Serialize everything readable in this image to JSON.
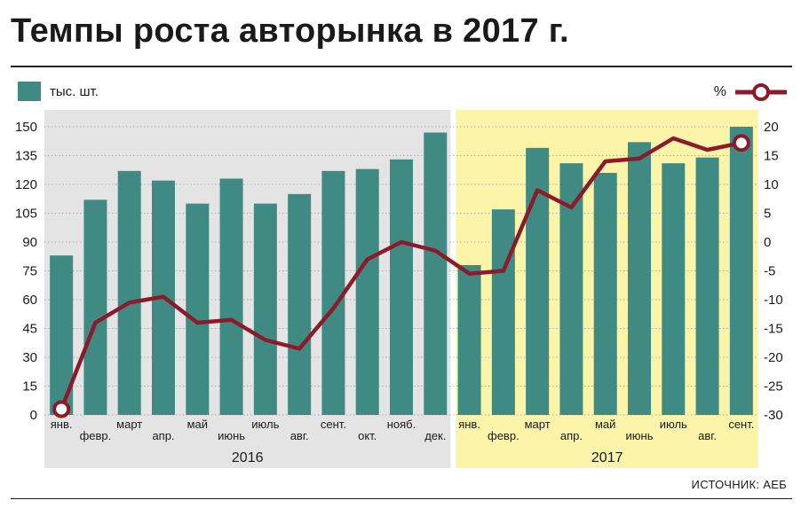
{
  "chart_data": {
    "type": "bar",
    "title": "Темпы роста авторынка в 2017 г.",
    "source": "ИСТОЧНИК: АЕБ",
    "legend": {
      "bars": "тыс. шт.",
      "line": "%"
    },
    "groups": [
      {
        "label": "2016",
        "background": "#e4e4e4",
        "categories": [
          "янв.",
          "февр.",
          "март",
          "апр.",
          "май",
          "июнь",
          "июль",
          "авг.",
          "сент.",
          "окт.",
          "нояб.",
          "дек."
        ]
      },
      {
        "label": "2017",
        "background": "#fbf4a9",
        "categories": [
          "янв.",
          "февр.",
          "март",
          "апр.",
          "май",
          "июнь",
          "июль",
          "авг.",
          "сент."
        ]
      }
    ],
    "y_left": {
      "ticks": [
        0,
        15,
        30,
        45,
        60,
        75,
        90,
        105,
        120,
        135,
        150
      ],
      "range": [
        0,
        150
      ]
    },
    "y_right": {
      "ticks": [
        -30,
        -25,
        -20,
        -15,
        -10,
        -5,
        0,
        5,
        10,
        15,
        20
      ],
      "range": [
        -30,
        20
      ]
    },
    "series": [
      {
        "name": "тыс. шт.",
        "type": "bar",
        "axis": "left",
        "color": "#3f8a82",
        "values": [
          83,
          112,
          127,
          122,
          110,
          123,
          110,
          115,
          127,
          128,
          133,
          147,
          78,
          107,
          139,
          131,
          126,
          142,
          131,
          134,
          150
        ]
      },
      {
        "name": "%",
        "type": "line",
        "axis": "right",
        "color": "#8b1a2b",
        "values": [
          -29,
          -14,
          -10.5,
          -9.5,
          -14,
          -13.5,
          -17,
          -18.5,
          -11.5,
          -3,
          0,
          -1.5,
          -5.5,
          -5,
          9,
          6,
          14,
          14.5,
          18,
          16,
          17.2
        ]
      }
    ]
  }
}
